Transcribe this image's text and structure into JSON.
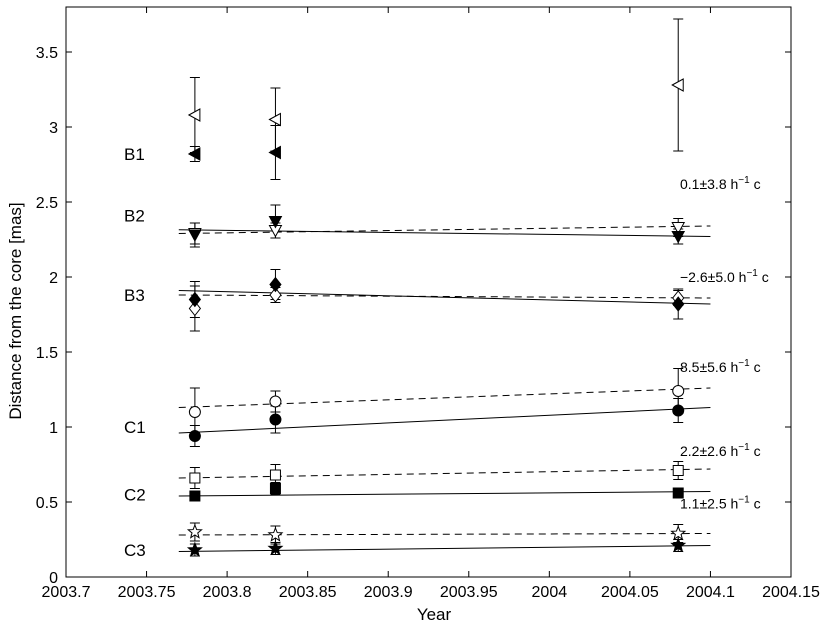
{
  "chart_data": {
    "type": "scatter",
    "title": "",
    "xlabel": "Year",
    "ylabel": "Distance from the core [mas]",
    "xlim": [
      2003.7,
      2004.15
    ],
    "ylim": [
      0,
      3.8
    ],
    "xticks": [
      "2003.7",
      "2003.75",
      "2003.8",
      "2003.85",
      "2003.9",
      "2003.95",
      "2004",
      "2004.05",
      "2004.1",
      "2004.15"
    ],
    "yticks": [
      "0",
      "0.5",
      "1",
      "1.5",
      "2",
      "2.5",
      "3",
      "3.5"
    ],
    "grid": false,
    "component_labels": [
      {
        "text": "B1",
        "y": 2.82
      },
      {
        "text": "B2",
        "y": 2.41
      },
      {
        "text": "B3",
        "y": 1.88
      },
      {
        "text": "C1",
        "y": 1.0
      },
      {
        "text": "C2",
        "y": 0.55
      },
      {
        "text": "C3",
        "y": 0.18
      }
    ],
    "speed_labels": [
      {
        "text": "0.1±3.8 h",
        "sup": "−1",
        "unit": " c",
        "y": 2.62
      },
      {
        "text": "−2.6±5.0 h",
        "sup": "−1",
        "unit": " c",
        "y": 2.0
      },
      {
        "text": "8.5±5.6 h",
        "sup": "−1",
        "unit": " c",
        "y": 1.4
      },
      {
        "text": "2.2±2.6 h",
        "sup": "−1",
        "unit": " c",
        "y": 0.84
      },
      {
        "text": "1.1±2.5 h",
        "sup": "−1",
        "unit": " c",
        "y": 0.49
      }
    ],
    "series": [
      {
        "component": "B1",
        "marker": "left-triangle",
        "filled": false,
        "x": [
          2003.78,
          2003.83,
          2004.08
        ],
        "y": [
          3.08,
          3.05,
          3.28
        ],
        "err": [
          0.25,
          0.21,
          0.44
        ]
      },
      {
        "component": "B1",
        "marker": "left-triangle",
        "filled": true,
        "x": [
          2003.78,
          2003.83
        ],
        "y": [
          2.82,
          2.83
        ],
        "err": [
          0.05,
          0.18
        ]
      },
      {
        "component": "B2",
        "marker": "down-triangle",
        "filled": false,
        "x": [
          2003.78,
          2003.83,
          2004.08
        ],
        "y": [
          2.29,
          2.31,
          2.33
        ],
        "err": [
          0.07,
          0.05,
          0.06
        ]
      },
      {
        "component": "B2",
        "marker": "down-triangle",
        "filled": true,
        "x": [
          2003.78,
          2003.83,
          2004.08
        ],
        "y": [
          2.28,
          2.37,
          2.27
        ],
        "err": [
          0.08,
          0.11,
          0.05
        ]
      },
      {
        "component": "B3",
        "marker": "diamond",
        "filled": false,
        "x": [
          2003.78,
          2003.83,
          2004.08
        ],
        "y": [
          1.79,
          1.88,
          1.86
        ],
        "err": [
          0.15,
          0.05,
          0.05
        ]
      },
      {
        "component": "B3",
        "marker": "diamond",
        "filled": true,
        "x": [
          2003.78,
          2003.83,
          2004.08
        ],
        "y": [
          1.85,
          1.95,
          1.82
        ],
        "err": [
          0.12,
          0.1,
          0.1
        ]
      },
      {
        "component": "C1",
        "marker": "circle",
        "filled": false,
        "x": [
          2003.78,
          2003.83,
          2004.08
        ],
        "y": [
          1.1,
          1.17,
          1.24
        ],
        "err": [
          0.16,
          0.07,
          0.15
        ]
      },
      {
        "component": "C1",
        "marker": "circle",
        "filled": true,
        "x": [
          2003.78,
          2003.83,
          2004.08
        ],
        "y": [
          0.94,
          1.05,
          1.11
        ],
        "err": [
          0.07,
          0.09,
          0.08
        ]
      },
      {
        "component": "C2",
        "marker": "square",
        "filled": false,
        "x": [
          2003.78,
          2003.83,
          2004.08
        ],
        "y": [
          0.66,
          0.68,
          0.71
        ],
        "err": [
          0.07,
          0.07,
          0.06
        ]
      },
      {
        "component": "C2",
        "marker": "square",
        "filled": true,
        "x": [
          2003.78,
          2003.83,
          2004.08
        ],
        "y": [
          0.54,
          0.59,
          0.56
        ],
        "err": [
          0.03,
          0.04,
          0.03
        ]
      },
      {
        "component": "C3",
        "marker": "star",
        "filled": false,
        "x": [
          2003.78,
          2003.83,
          2004.08
        ],
        "y": [
          0.3,
          0.28,
          0.29
        ],
        "err": [
          0.06,
          0.06,
          0.06
        ]
      },
      {
        "component": "C3",
        "marker": "star",
        "filled": true,
        "x": [
          2003.78,
          2003.83,
          2004.08
        ],
        "y": [
          0.18,
          0.19,
          0.21
        ],
        "err": [
          0.04,
          0.04,
          0.04
        ]
      }
    ],
    "fit_lines": [
      {
        "component": "B2",
        "style": "solid",
        "x": [
          2003.77,
          2004.1
        ],
        "y": [
          2.315,
          2.27
        ]
      },
      {
        "component": "B2",
        "style": "dashed",
        "x": [
          2003.77,
          2004.1
        ],
        "y": [
          2.29,
          2.34
        ]
      },
      {
        "component": "B3",
        "style": "solid",
        "x": [
          2003.77,
          2004.1
        ],
        "y": [
          1.91,
          1.82
        ]
      },
      {
        "component": "B3",
        "style": "dashed",
        "x": [
          2003.77,
          2004.1
        ],
        "y": [
          1.88,
          1.86
        ]
      },
      {
        "component": "C1",
        "style": "solid",
        "x": [
          2003.77,
          2004.1
        ],
        "y": [
          0.96,
          1.13
        ]
      },
      {
        "component": "C1",
        "style": "dashed",
        "x": [
          2003.77,
          2004.1
        ],
        "y": [
          1.13,
          1.26
        ]
      },
      {
        "component": "C2",
        "style": "solid",
        "x": [
          2003.77,
          2004.1
        ],
        "y": [
          0.54,
          0.57
        ]
      },
      {
        "component": "C2",
        "style": "dashed",
        "x": [
          2003.77,
          2004.1
        ],
        "y": [
          0.66,
          0.72
        ]
      },
      {
        "component": "C3",
        "style": "solid",
        "x": [
          2003.77,
          2004.1
        ],
        "y": [
          0.17,
          0.21
        ]
      },
      {
        "component": "C3",
        "style": "dashed",
        "x": [
          2003.77,
          2004.1
        ],
        "y": [
          0.28,
          0.29
        ]
      }
    ]
  }
}
